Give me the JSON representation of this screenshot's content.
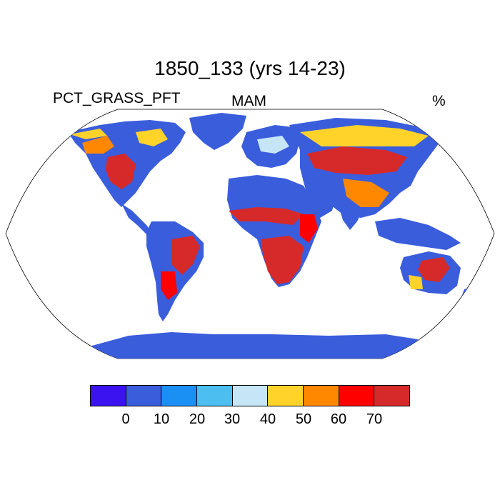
{
  "title": "1850_133 (yrs 14-23)",
  "left_label": "PCT_GRASS_PFT",
  "center_label": "MAM",
  "right_label": "%",
  "colorbar": {
    "colors": [
      "#3b12f0",
      "#3a5ddc",
      "#1a90f5",
      "#4dbef0",
      "#c6e6f7",
      "#ffd32a",
      "#ff8800",
      "#ff0000",
      "#d62a2a"
    ],
    "tick_labels": [
      "0",
      "10",
      "20",
      "30",
      "40",
      "50",
      "60",
      "70"
    ]
  },
  "map": {
    "projection": "Robinson",
    "ocean_color": "#ffffff",
    "land_base_color": "#3a5ddc"
  }
}
